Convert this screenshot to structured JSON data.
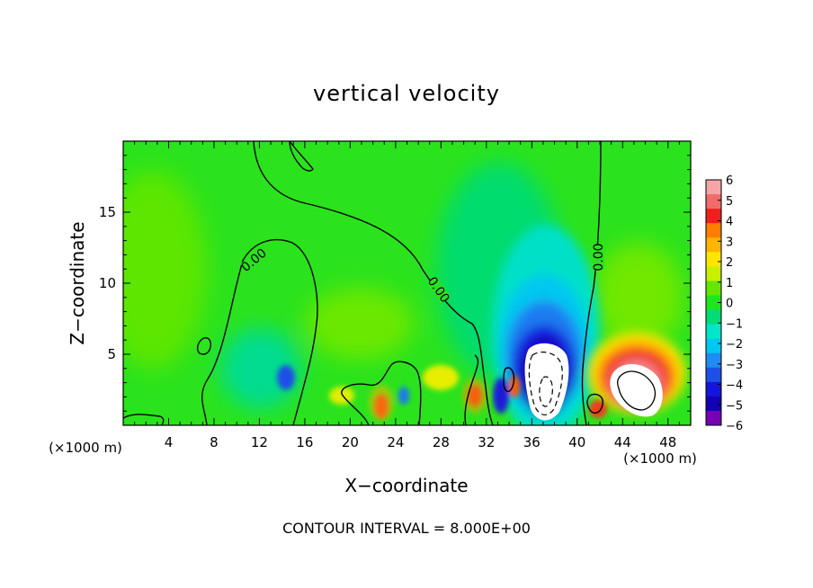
{
  "chart_data": {
    "type": "heatmap",
    "title": "vertical velocity",
    "xlabel": "X−coordinate",
    "ylabel": "Z−coordinate",
    "x_unit_label": "(×1000 m)",
    "xlim": [
      0,
      50
    ],
    "ylim": [
      0,
      20
    ],
    "xticks": [
      4,
      8,
      12,
      16,
      20,
      24,
      28,
      32,
      36,
      40,
      44,
      48
    ],
    "yticks": [
      5,
      10,
      15
    ],
    "contour_label": "0.00",
    "footer": "CONTOUR INTERVAL = 8.000E+00",
    "colorbar": {
      "min": -6,
      "max": 6,
      "tick_labels": [
        "6",
        "5",
        "4",
        "3",
        "2",
        "1",
        "0",
        "−1",
        "−2",
        "−3",
        "−4",
        "−5",
        "−6"
      ],
      "colors": [
        "#f4a6a6",
        "#f26b6b",
        "#f01e1e",
        "#ff7d00",
        "#ffb400",
        "#ffe600",
        "#c8f000",
        "#64e600",
        "#1ee61e",
        "#00dc78",
        "#00e6c8",
        "#00c8f0",
        "#1e8cf0",
        "#1e50e6",
        "#1414dc",
        "#1400b4",
        "#7800b4"
      ]
    },
    "features": [
      {
        "x": 14,
        "z": 3.5,
        "w": -3
      },
      {
        "x": 22.5,
        "z": 1.4,
        "w": 4
      },
      {
        "x": 30.5,
        "z": 1.8,
        "w": 4
      },
      {
        "x": 34.5,
        "z": 2.2,
        "w": -5
      },
      {
        "x": 37,
        "z": 3.5,
        "w": -8
      },
      {
        "x": 45,
        "z": 3,
        "w": 8
      },
      {
        "x": 28,
        "z": 3.2,
        "w": 2
      }
    ]
  }
}
